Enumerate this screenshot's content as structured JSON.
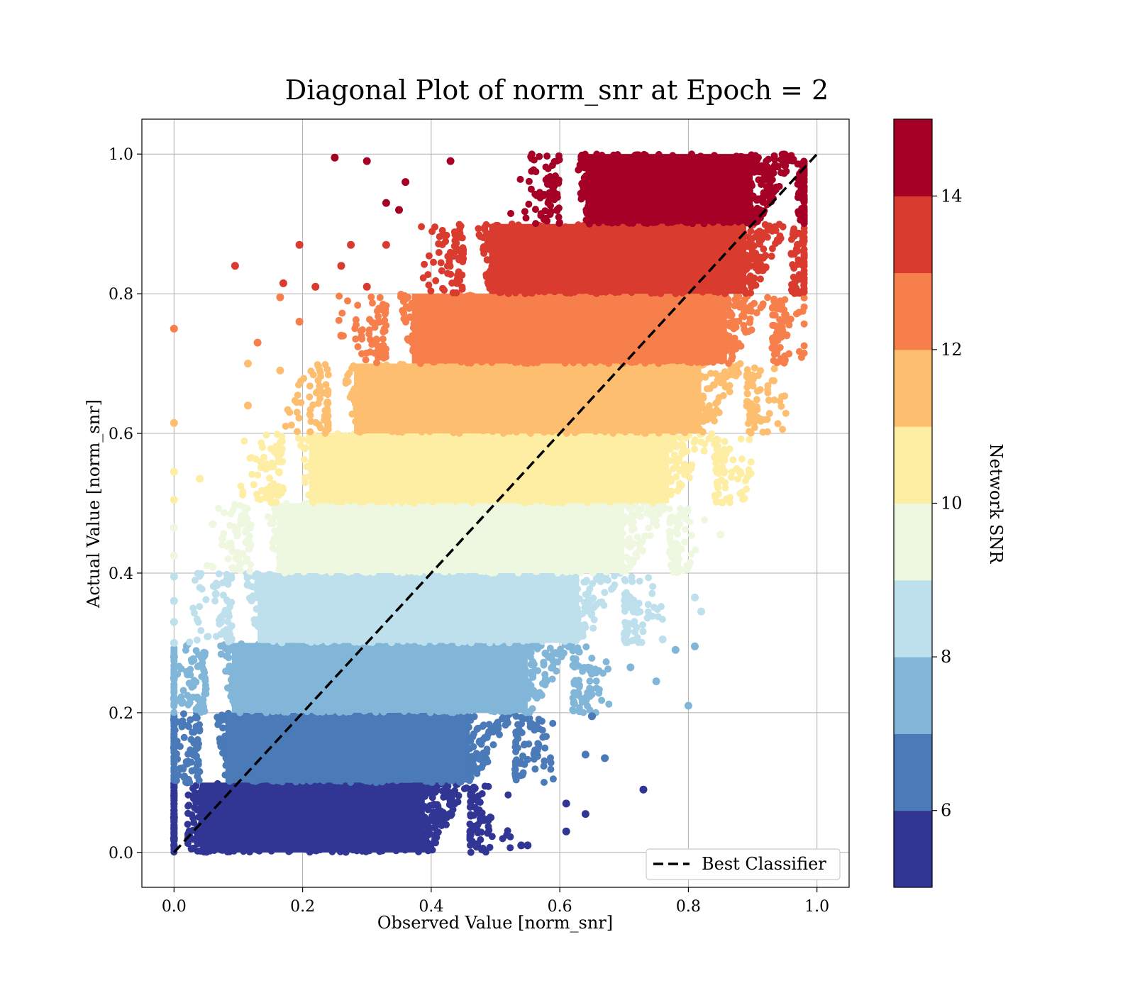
{
  "chart_data": {
    "type": "scatter",
    "title": "Diagonal Plot of norm_snr at Epoch = 2",
    "xlabel": "Observed Value [norm_snr]",
    "ylabel": "Actual Value [norm_snr]",
    "xlim": [
      -0.05,
      1.05
    ],
    "ylim": [
      -0.05,
      1.05
    ],
    "xticks": [
      0.0,
      0.2,
      0.4,
      0.6,
      0.8,
      1.0
    ],
    "yticks": [
      0.0,
      0.2,
      0.4,
      0.6,
      0.8,
      1.0
    ],
    "xtick_labels": [
      "0.0",
      "0.2",
      "0.4",
      "0.6",
      "0.8",
      "1.0"
    ],
    "ytick_labels": [
      "0.0",
      "0.2",
      "0.4",
      "0.6",
      "0.8",
      "1.0"
    ],
    "grid": true,
    "reference_line": {
      "label": "Best Classifier",
      "x": [
        0.0,
        1.0
      ],
      "y": [
        0.0,
        1.0
      ],
      "style": "dashed",
      "color": "#000000"
    },
    "legend": {
      "location": "lower-right",
      "entries": [
        "Best Classifier"
      ]
    },
    "colorbar": {
      "label": "Network SNR",
      "range": [
        5,
        15
      ],
      "ticks": [
        6,
        8,
        10,
        12,
        14
      ],
      "tick_labels": [
        "6",
        "8",
        "10",
        "12",
        "14"
      ],
      "colors": [
        "#313695",
        "#4a7ab7",
        "#82b6d8",
        "#bee0ec",
        "#eef7e0",
        "#feeea4",
        "#fdbe70",
        "#f67f4b",
        "#da3b2f",
        "#a50026"
      ]
    },
    "bands": [
      {
        "snr_bin": [
          5,
          6
        ],
        "y_range": [
          0.0,
          0.1
        ],
        "x_range": [
          0.0,
          0.46
        ]
      },
      {
        "snr_bin": [
          6,
          7
        ],
        "y_range": [
          0.1,
          0.2
        ],
        "x_range": [
          0.04,
          0.53
        ]
      },
      {
        "snr_bin": [
          7,
          8
        ],
        "y_range": [
          0.2,
          0.3
        ],
        "x_range": [
          0.05,
          0.62
        ]
      },
      {
        "snr_bin": [
          8,
          9
        ],
        "y_range": [
          0.3,
          0.4
        ],
        "x_range": [
          0.09,
          0.7
        ]
      },
      {
        "snr_bin": [
          9,
          10
        ],
        "y_range": [
          0.4,
          0.5
        ],
        "x_range": [
          0.12,
          0.77
        ]
      },
      {
        "snr_bin": [
          10,
          11
        ],
        "y_range": [
          0.5,
          0.6
        ],
        "x_range": [
          0.17,
          0.84
        ]
      },
      {
        "snr_bin": [
          11,
          12
        ],
        "y_range": [
          0.6,
          0.7
        ],
        "x_range": [
          0.24,
          0.89
        ]
      },
      {
        "snr_bin": [
          12,
          13
        ],
        "y_range": [
          0.7,
          0.8
        ],
        "x_range": [
          0.33,
          0.93
        ]
      },
      {
        "snr_bin": [
          13,
          14
        ],
        "y_range": [
          0.8,
          0.9
        ],
        "x_range": [
          0.45,
          0.96
        ]
      },
      {
        "snr_bin": [
          14,
          15
        ],
        "y_range": [
          0.9,
          1.0
        ],
        "x_range": [
          0.6,
          0.97
        ]
      }
    ],
    "outliers": [
      {
        "x": 0.25,
        "y": 0.995,
        "snr": 14.5
      },
      {
        "x": 0.3,
        "y": 0.99,
        "snr": 14.5
      },
      {
        "x": 0.33,
        "y": 0.93,
        "snr": 14.5
      },
      {
        "x": 0.36,
        "y": 0.96,
        "snr": 14.5
      },
      {
        "x": 0.35,
        "y": 0.92,
        "snr": 14.5
      },
      {
        "x": 0.43,
        "y": 0.99,
        "snr": 14.5
      },
      {
        "x": 0.195,
        "y": 0.87,
        "snr": 13.5
      },
      {
        "x": 0.275,
        "y": 0.87,
        "snr": 13.5
      },
      {
        "x": 0.095,
        "y": 0.84,
        "snr": 13.5
      },
      {
        "x": 0.17,
        "y": 0.815,
        "snr": 13.5
      },
      {
        "x": 0.26,
        "y": 0.84,
        "snr": 13.5
      },
      {
        "x": 0.3,
        "y": 0.81,
        "snr": 13.5
      },
      {
        "x": 0.33,
        "y": 0.87,
        "snr": 13.5
      },
      {
        "x": 0.22,
        "y": 0.81,
        "snr": 13.5
      },
      {
        "x": 0.0,
        "y": 0.75,
        "snr": 12.5
      },
      {
        "x": 0.13,
        "y": 0.73,
        "snr": 12.5
      },
      {
        "x": 0.195,
        "y": 0.76,
        "snr": 12.5
      },
      {
        "x": 0.165,
        "y": 0.795,
        "snr": 12.5
      },
      {
        "x": 0.26,
        "y": 0.74,
        "snr": 12.5
      },
      {
        "x": 0.97,
        "y": 0.87,
        "snr": 13.5
      },
      {
        "x": 0.95,
        "y": 0.705,
        "snr": 12.5
      },
      {
        "x": 0.0,
        "y": 0.615,
        "snr": 11.5
      },
      {
        "x": 0.115,
        "y": 0.64,
        "snr": 11.5
      },
      {
        "x": 0.115,
        "y": 0.7,
        "snr": 11.5
      },
      {
        "x": 0.165,
        "y": 0.69,
        "snr": 11.5
      },
      {
        "x": 0.0,
        "y": 0.545,
        "snr": 10.5
      },
      {
        "x": 0.0,
        "y": 0.505,
        "snr": 10.5
      },
      {
        "x": 0.04,
        "y": 0.535,
        "snr": 10.5
      },
      {
        "x": 0.88,
        "y": 0.545,
        "snr": 10.5
      },
      {
        "x": 0.0,
        "y": 0.465,
        "snr": 9.5
      },
      {
        "x": 0.0,
        "y": 0.425,
        "snr": 9.5
      },
      {
        "x": 0.06,
        "y": 0.47,
        "snr": 9.5
      },
      {
        "x": 0.85,
        "y": 0.455,
        "snr": 9.5
      },
      {
        "x": 0.0,
        "y": 0.395,
        "snr": 8.5
      },
      {
        "x": 0.0,
        "y": 0.36,
        "snr": 8.5
      },
      {
        "x": 0.0,
        "y": 0.33,
        "snr": 8.5
      },
      {
        "x": 0.0,
        "y": 0.3,
        "snr": 8.5
      },
      {
        "x": 0.065,
        "y": 0.37,
        "snr": 8.5
      },
      {
        "x": 0.81,
        "y": 0.365,
        "snr": 8.5
      },
      {
        "x": 0.82,
        "y": 0.345,
        "snr": 8.5
      },
      {
        "x": 0.76,
        "y": 0.305,
        "snr": 8.5
      },
      {
        "x": 0.0,
        "y": 0.28,
        "snr": 7.5
      },
      {
        "x": 0.0,
        "y": 0.25,
        "snr": 7.5
      },
      {
        "x": 0.0,
        "y": 0.22,
        "snr": 7.5
      },
      {
        "x": 0.035,
        "y": 0.205,
        "snr": 7.5
      },
      {
        "x": 0.75,
        "y": 0.245,
        "snr": 7.5
      },
      {
        "x": 0.8,
        "y": 0.21,
        "snr": 7.5
      },
      {
        "x": 0.81,
        "y": 0.295,
        "snr": 7.5
      },
      {
        "x": 0.78,
        "y": 0.29,
        "snr": 7.5
      },
      {
        "x": 0.71,
        "y": 0.265,
        "snr": 7.5
      },
      {
        "x": 0.0,
        "y": 0.19,
        "snr": 6.5
      },
      {
        "x": 0.0,
        "y": 0.15,
        "snr": 6.5
      },
      {
        "x": 0.01,
        "y": 0.12,
        "snr": 6.5
      },
      {
        "x": 0.035,
        "y": 0.18,
        "snr": 6.5
      },
      {
        "x": 0.67,
        "y": 0.135,
        "snr": 6.5
      },
      {
        "x": 0.64,
        "y": 0.14,
        "snr": 6.5
      },
      {
        "x": 0.65,
        "y": 0.195,
        "snr": 6.5
      },
      {
        "x": 0.73,
        "y": 0.09,
        "snr": 5.5
      },
      {
        "x": 0.64,
        "y": 0.055,
        "snr": 5.5
      },
      {
        "x": 0.61,
        "y": 0.07,
        "snr": 5.5
      },
      {
        "x": 0.61,
        "y": 0.03,
        "snr": 5.5
      },
      {
        "x": 0.55,
        "y": 0.01,
        "snr": 5.5
      },
      {
        "x": 0.54,
        "y": 0.01,
        "snr": 5.5
      },
      {
        "x": 0.0,
        "y": 0.05,
        "snr": 5.5
      },
      {
        "x": 0.0,
        "y": 0.02,
        "snr": 5.5
      }
    ]
  }
}
